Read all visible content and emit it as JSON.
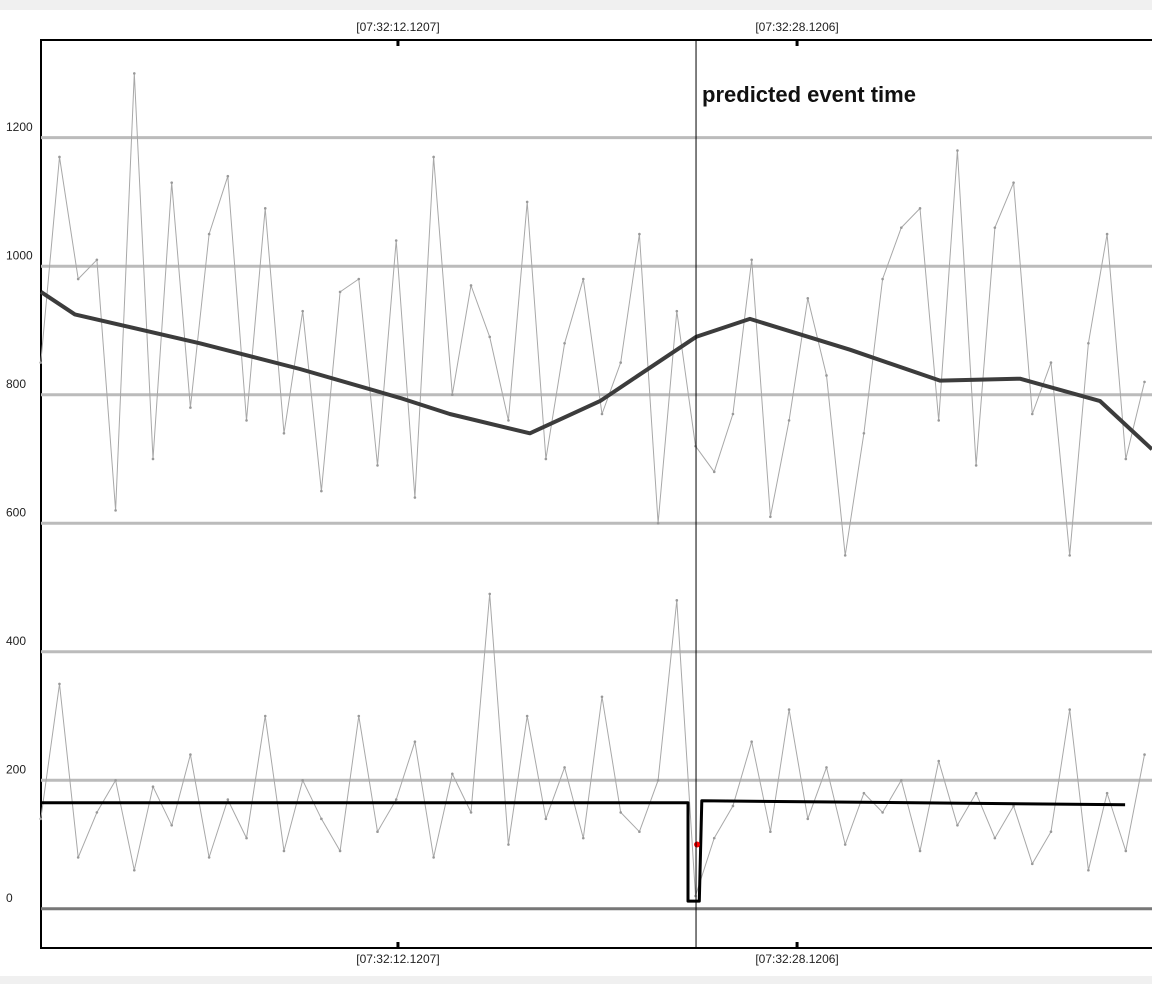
{
  "chart_data": {
    "type": "line",
    "xlim": [
      -2.19,
      42.35
    ],
    "ylim": [
      -61,
      1352
    ],
    "xticks": [
      {
        "value": 12.1207,
        "label": "[07:32:12.1207]"
      },
      {
        "value": 28.1206,
        "label": "[07:32:28.1206]"
      }
    ],
    "yticks": [
      0,
      200,
      400,
      600,
      800,
      1000,
      1200
    ],
    "grid": true,
    "annotations": [
      {
        "text": "predicted event time",
        "x": 24.07
      }
    ],
    "series": [
      {
        "type": "line",
        "color": "#a8a8a8",
        "width": 1,
        "x": [
          -2.2,
          -1.45,
          -0.7,
          0.05,
          0.8,
          1.55,
          2.3,
          3.05,
          3.8,
          4.55,
          5.3,
          6.05,
          6.8,
          7.55,
          8.3,
          9.05,
          9.8,
          10.55,
          11.3,
          12.05,
          12.8,
          13.55,
          14.3,
          15.05,
          15.8,
          16.55,
          17.3,
          18.05,
          18.8,
          19.55,
          20.3,
          21.05,
          21.8,
          22.55,
          23.3,
          24.05,
          24.8,
          25.55,
          26.3,
          27.05,
          27.8,
          28.55,
          29.3,
          30.05,
          30.8,
          31.55,
          32.3,
          33.05,
          33.8,
          34.55,
          35.3,
          36.05,
          36.8,
          37.55,
          38.3,
          39.05,
          39.8,
          40.55,
          41.3,
          42.05
        ],
        "values": [
          850,
          1170,
          980,
          1010,
          620,
          1300,
          700,
          1130,
          780,
          1050,
          1140,
          760,
          1090,
          740,
          930,
          650,
          960,
          980,
          690,
          1040,
          640,
          1170,
          800,
          970,
          890,
          760,
          1100,
          700,
          880,
          980,
          770,
          850,
          1050,
          600,
          930,
          720,
          680,
          770,
          1010,
          610,
          760,
          950,
          830,
          550,
          740,
          980,
          1060,
          1090,
          760,
          1180,
          690,
          1060,
          1130,
          770,
          850,
          550,
          880,
          1050,
          700,
          820
        ],
        "values_tail_unused": null
      },
      {
        "type": "line",
        "color": "#a8a8a8",
        "width": 1,
        "x": [
          -2.2,
          -1.45,
          -0.7,
          0.05,
          0.8,
          1.55,
          2.3,
          3.05,
          3.8,
          4.55,
          5.3,
          6.05,
          6.8,
          7.55,
          8.3,
          9.05,
          9.8,
          10.55,
          11.3,
          12.05,
          12.8,
          13.55,
          14.3,
          15.05,
          15.8,
          16.55,
          17.3,
          18.05,
          18.8,
          19.55,
          20.3,
          21.05,
          21.8,
          22.55,
          23.3,
          24.05,
          24.8,
          25.55,
          26.3,
          27.05,
          27.8,
          28.55,
          29.3,
          30.05,
          30.8,
          31.55,
          32.3,
          33.05,
          33.8,
          34.55,
          35.3,
          36.05,
          36.8,
          37.55,
          38.3,
          39.05,
          39.8,
          40.55,
          41.3,
          42.05
        ],
        "values": [
          140,
          350,
          80,
          150,
          200,
          60,
          190,
          130,
          240,
          80,
          170,
          110,
          300,
          90,
          200,
          140,
          90,
          300,
          120,
          170,
          260,
          80,
          210,
          150,
          490,
          100,
          300,
          140,
          220,
          110,
          330,
          150,
          120,
          200,
          480,
          20,
          110,
          160,
          260,
          120,
          310,
          140,
          220,
          100,
          180,
          150,
          200,
          90,
          230,
          130,
          180,
          110,
          160,
          70,
          120,
          310,
          60,
          180,
          90,
          240
        ],
        "values_tail_unused": null
      },
      {
        "type": "line",
        "color": "#3c3c3c",
        "width": 4,
        "x": [
          -2.19,
          -0.83,
          4.18,
          8.19,
          12.2,
          14.2,
          17.41,
          20.22,
          24.07,
          26.23,
          30.24,
          33.85,
          37.06,
          40.27,
          42.35
        ],
        "values": [
          960,
          925,
          880,
          840,
          795,
          770,
          740,
          790,
          890,
          918,
          870,
          822,
          825,
          790,
          715
        ]
      },
      {
        "type": "line",
        "color": "#000000",
        "width": 3,
        "x": [
          -2.19,
          23.75,
          23.75,
          24.2,
          24.3,
          41.27
        ],
        "values": [
          165,
          165,
          12,
          12,
          168,
          162
        ]
      },
      {
        "type": "scatter",
        "color": "#ff0000",
        "width": 1,
        "x": [
          24.11
        ],
        "values": [
          100
        ]
      }
    ]
  }
}
